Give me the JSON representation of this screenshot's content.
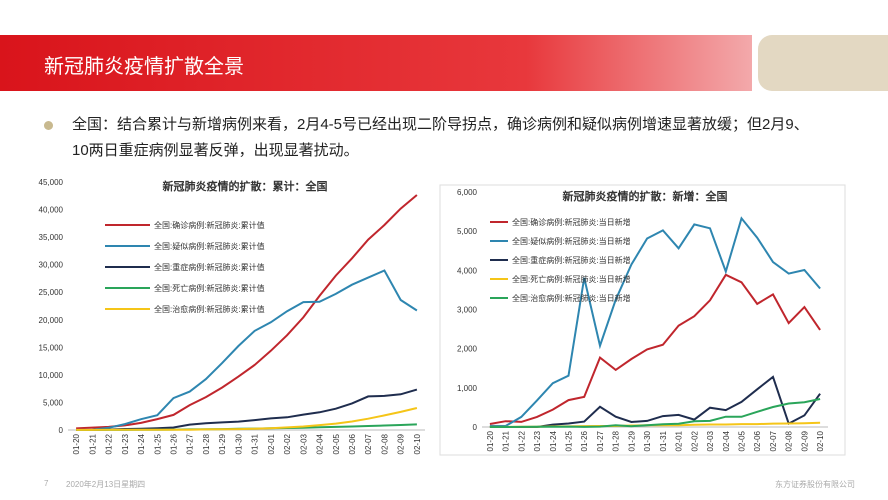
{
  "header": {
    "title": "新冠肺炎疫情扩散全景"
  },
  "bullet": "全国：结合累计与新增病例来看，2月4-5号已经出现二阶导拐点，确诊病例和疑似病例增速显著放缓；但2月9、10两日重症病例显著反弹，出现显著扰动。",
  "footer": {
    "page": "7",
    "date": "2020年2月13日星期四",
    "company": "东方证券股份有限公司"
  },
  "chart_data": [
    {
      "type": "line",
      "title": "新冠肺炎疫情的扩散：累计：全国",
      "categories": [
        "01-20",
        "01-21",
        "01-22",
        "01-23",
        "01-24",
        "01-25",
        "01-26",
        "01-27",
        "01-28",
        "01-29",
        "01-30",
        "01-31",
        "02-01",
        "02-02",
        "02-03",
        "02-04",
        "02-05",
        "02-06",
        "02-07",
        "02-08",
        "02-09",
        "02-10"
      ],
      "series": [
        {
          "name": "全国:确诊病例:新冠肺炎:累计值",
          "color": "#c0262d",
          "values": [
            291,
            440,
            571,
            830,
            1287,
            1975,
            2744,
            4515,
            5974,
            7711,
            9692,
            11791,
            14380,
            17205,
            20438,
            24324,
            28018,
            31161,
            34546,
            37198,
            40171,
            42638
          ]
        },
        {
          "name": "全国:疑似病例:新冠肺炎:累计值",
          "color": "#2e86b0",
          "values": [
            0,
            37,
            393,
            1072,
            1965,
            2684,
            5794,
            6973,
            9239,
            12167,
            15238,
            17988,
            19544,
            21558,
            23214,
            23260,
            24702,
            26359,
            27657,
            28942,
            23589,
            21675
          ]
        },
        {
          "name": "全国:重症病例:新冠肺炎:累计值",
          "color": "#1f2d4e",
          "values": [
            0,
            0,
            95,
            177,
            237,
            324,
            461,
            976,
            1239,
            1370,
            1527,
            1795,
            2110,
            2296,
            2788,
            3219,
            3859,
            4821,
            6101,
            6188,
            6484,
            7333
          ]
        },
        {
          "name": "全国:死亡病例:新冠肺炎:累计值",
          "color": "#2aa55a",
          "values": [
            6,
            9,
            17,
            25,
            41,
            56,
            80,
            106,
            132,
            170,
            213,
            259,
            304,
            361,
            425,
            490,
            563,
            636,
            722,
            811,
            908,
            1016
          ]
        },
        {
          "name": "全国:治愈病例:新冠肺炎:累计值",
          "color": "#f5c518",
          "values": [
            25,
            25,
            28,
            34,
            38,
            49,
            51,
            60,
            103,
            124,
            171,
            243,
            328,
            475,
            632,
            892,
            1153,
            1540,
            2050,
            2649,
            3281,
            3996
          ]
        }
      ],
      "ylim": [
        0,
        45000
      ],
      "yticks": [
        0,
        {
          "value": 5000,
          "label": "5,000"
        },
        {
          "value": 10000,
          "label": "10,000"
        },
        {
          "value": 15000,
          "label": "15,000"
        },
        {
          "value": 20000,
          "label": "20,000"
        },
        {
          "value": 25000,
          "label": "25,000"
        },
        {
          "value": 30000,
          "label": "30,000"
        },
        {
          "value": 35000,
          "label": "35,000"
        },
        {
          "value": 40000,
          "label": "40,000"
        },
        {
          "value": 45000,
          "label": "45,000"
        }
      ],
      "grid": false,
      "legend": "upper left"
    },
    {
      "type": "line",
      "title": "新冠肺炎疫情的扩散：新增：全国",
      "categories": [
        "01-20",
        "01-21",
        "01-22",
        "01-23",
        "01-24",
        "01-25",
        "01-26",
        "01-27",
        "01-28",
        "01-29",
        "01-30",
        "01-31",
        "02-01",
        "02-02",
        "02-03",
        "02-04",
        "02-05",
        "02-06",
        "02-07",
        "02-08",
        "02-09",
        "02-10"
      ],
      "series": [
        {
          "name": "全国:确诊病例:新冠肺炎:当日新增",
          "color": "#c0262d",
          "values": [
            77,
            149,
            131,
            259,
            444,
            688,
            769,
            1771,
            1459,
            1737,
            1982,
            2102,
            2590,
            2829,
            3235,
            3887,
            3694,
            3143,
            3385,
            2652,
            3062,
            2478
          ]
        },
        {
          "name": "全国:疑似病例:新冠肺炎:当日新增",
          "color": "#2e86b0",
          "values": [
            27,
            26,
            257,
            680,
            1118,
            1309,
            3806,
            2077,
            3248,
            4148,
            4812,
            5019,
            4562,
            5173,
            5072,
            3971,
            5328,
            4833,
            4214,
            3916,
            4008,
            3536
          ]
        },
        {
          "name": "全国:重症病例:新冠肺炎:当日新增",
          "color": "#1f2d4e",
          "values": [
            0,
            0,
            0,
            0,
            60,
            90,
            137,
            515,
            263,
            128,
            156,
            279,
            308,
            189,
            492,
            431,
            640,
            962,
            1280,
            87,
            296,
            849
          ]
        },
        {
          "name": "全国:死亡病例:新冠肺炎:当日新增",
          "color": "#f5c518",
          "values": [
            3,
            3,
            8,
            8,
            16,
            15,
            24,
            26,
            26,
            38,
            43,
            46,
            45,
            57,
            64,
            65,
            73,
            73,
            86,
            89,
            97,
            108
          ]
        },
        {
          "name": "全国:治愈病例:新冠肺炎:当日新增",
          "color": "#2aa55a",
          "values": [
            0,
            0,
            3,
            6,
            4,
            11,
            2,
            9,
            43,
            21,
            47,
            72,
            85,
            147,
            157,
            262,
            261,
            387,
            510,
            600,
            632,
            716
          ]
        }
      ],
      "ylim": [
        0,
        6000
      ],
      "yticks": [
        0,
        {
          "value": 1000,
          "label": "1,000"
        },
        {
          "value": 2000,
          "label": "2,000"
        },
        {
          "value": 3000,
          "label": "3,000"
        },
        {
          "value": 4000,
          "label": "4,000"
        },
        {
          "value": 5000,
          "label": "5,000"
        },
        {
          "value": 6000,
          "label": "6,000"
        }
      ],
      "grid": false,
      "legend": "upper left"
    }
  ]
}
